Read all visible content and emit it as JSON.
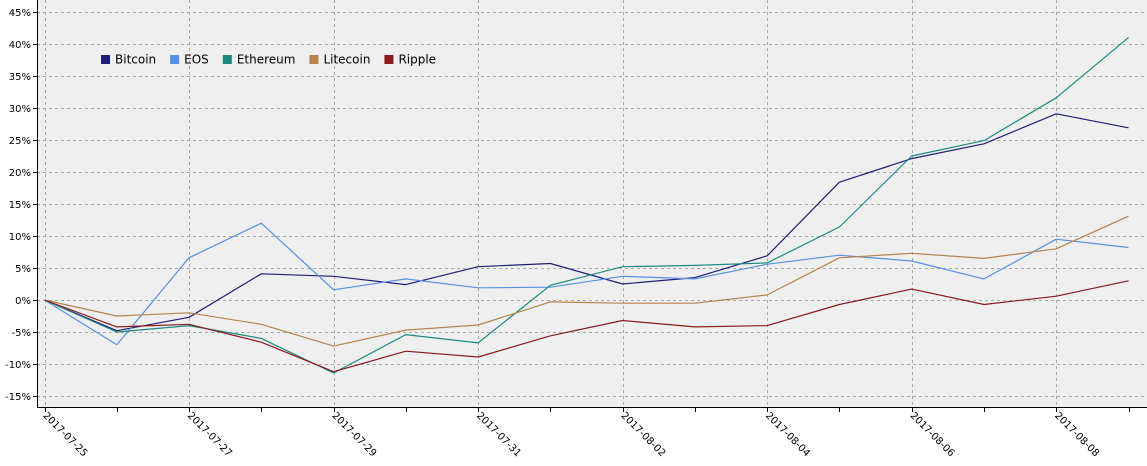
{
  "colors": {
    "plot_background": "#efefef",
    "grid": "#a9a9a9",
    "axis": "#000000"
  },
  "chart_data": {
    "type": "line",
    "title": "",
    "xlabel": "",
    "ylabel": "",
    "grid": true,
    "legend_position": "top-left",
    "ylim": [
      -0.165,
      0.45
    ],
    "y_ticks": [
      -0.15,
      -0.1,
      -0.05,
      0,
      0.05,
      0.1,
      0.15,
      0.2,
      0.25,
      0.3,
      0.35,
      0.4,
      0.45
    ],
    "y_tick_labels": [
      "-15%",
      "-10%",
      "-5%",
      "0%",
      "5%",
      "10%",
      "15%",
      "20%",
      "25%",
      "30%",
      "35%",
      "40%",
      "45%"
    ],
    "x": [
      "2017-07-25",
      "2017-07-26",
      "2017-07-27",
      "2017-07-28",
      "2017-07-29",
      "2017-07-30",
      "2017-07-31",
      "2017-08-01",
      "2017-08-02",
      "2017-08-03",
      "2017-08-04",
      "2017-08-05",
      "2017-08-06",
      "2017-08-07",
      "2017-08-08",
      "2017-08-09"
    ],
    "x_tick_labels": [
      "2017-07-25",
      "2017-07-27",
      "2017-07-29",
      "2017-07-31",
      "2017-08-02",
      "2017-08-04",
      "2017-08-06",
      "2017-08-08"
    ],
    "series": [
      {
        "name": "Bitcoin",
        "color": "#1f1f7a",
        "values": [
          0,
          -0.048,
          -0.027,
          0.041,
          0.037,
          0.024,
          0.052,
          0.057,
          0.025,
          0.035,
          0.069,
          0.184,
          0.221,
          0.244,
          0.291,
          0.269
        ]
      },
      {
        "name": "EOS",
        "color": "#5591e6",
        "values": [
          0,
          -0.07,
          0.066,
          0.12,
          0.016,
          0.033,
          0.019,
          0.02,
          0.037,
          0.033,
          0.056,
          0.07,
          0.061,
          0.033,
          0.095,
          0.082
        ]
      },
      {
        "name": "Ethereum",
        "color": "#1b8a83",
        "values": [
          0,
          -0.05,
          -0.04,
          -0.06,
          -0.114,
          -0.054,
          -0.067,
          0.023,
          0.052,
          0.054,
          0.058,
          0.114,
          0.225,
          0.249,
          0.316,
          0.41
        ]
      },
      {
        "name": "Litecoin",
        "color": "#b8834a",
        "values": [
          0,
          -0.025,
          -0.02,
          -0.038,
          -0.072,
          -0.047,
          -0.039,
          -0.003,
          -0.005,
          -0.005,
          0.008,
          0.066,
          0.073,
          0.065,
          0.08,
          0.131
        ]
      },
      {
        "name": "Ripple",
        "color": "#8b1a1a",
        "values": [
          0,
          -0.042,
          -0.038,
          -0.066,
          -0.112,
          -0.08,
          -0.089,
          -0.056,
          -0.032,
          -0.042,
          -0.04,
          -0.007,
          0.017,
          -0.007,
          0.006,
          0.03
        ]
      }
    ]
  }
}
